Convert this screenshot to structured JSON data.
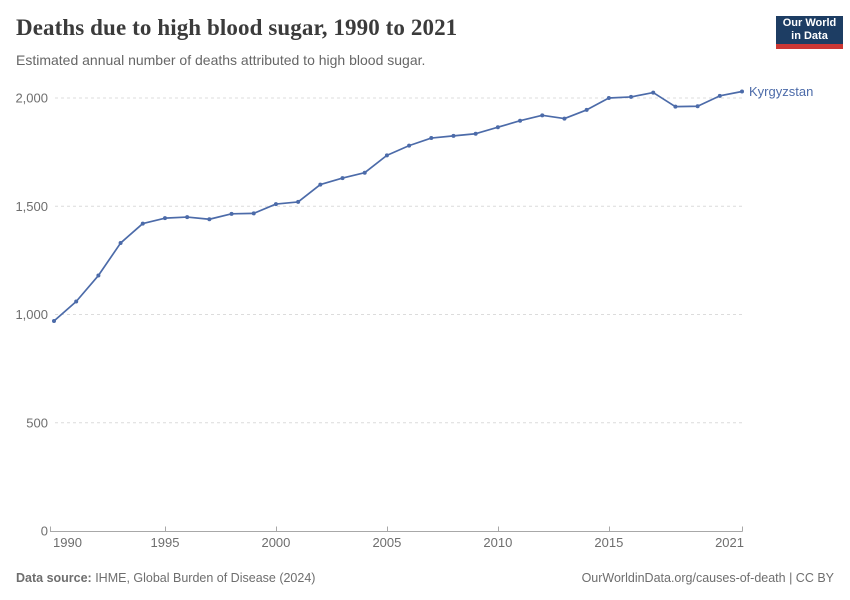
{
  "header": {
    "title": "Deaths due to high blood sugar, 1990 to 2021",
    "subtitle": "Estimated annual number of deaths attributed to high blood sugar.",
    "logo_line1": "Our World",
    "logo_line2": "in Data"
  },
  "footer": {
    "data_source_label": "Data source:",
    "data_source_value": " IHME, Global Burden of Disease (2024)",
    "link": "OurWorldinData.org/causes-of-death | CC BY"
  },
  "colors": {
    "line": "#4c6ba9",
    "grid": "#dcdcdc",
    "axis": "#a8a8a8",
    "tick_text": "#6e6e6e",
    "title_text": "#3b3b3b",
    "logo_bg": "#1d3d63",
    "logo_red": "#cb3734"
  },
  "chart_data": {
    "type": "line",
    "title": "Deaths due to high blood sugar, 1990 to 2021",
    "subtitle": "Estimated annual number of deaths attributed to high blood sugar.",
    "xlabel": "",
    "ylabel": "",
    "xlim": [
      1990,
      2021
    ],
    "ylim": [
      0,
      2000
    ],
    "grid": "horizontal-dashed",
    "legend": "end-of-line-label",
    "x_ticks": [
      1990,
      1995,
      2000,
      2005,
      2010,
      2015,
      2021
    ],
    "x_tick_labels": [
      "1990",
      "1995",
      "2000",
      "2005",
      "2010",
      "2015",
      "2021"
    ],
    "y_ticks": [
      0,
      500,
      1000,
      1500,
      2000
    ],
    "y_tick_labels": [
      "0",
      "500",
      "1,000",
      "1,500",
      "2,000"
    ],
    "x": [
      1990,
      1991,
      1992,
      1993,
      1994,
      1995,
      1996,
      1997,
      1998,
      1999,
      2000,
      2001,
      2002,
      2003,
      2004,
      2005,
      2006,
      2007,
      2008,
      2009,
      2010,
      2011,
      2012,
      2013,
      2014,
      2015,
      2016,
      2017,
      2018,
      2019,
      2020,
      2021
    ],
    "series": [
      {
        "name": "Kyrgyzstan",
        "color": "#4c6ba9",
        "values": [
          970,
          1060,
          1180,
          1330,
          1420,
          1445,
          1450,
          1440,
          1465,
          1467,
          1510,
          1520,
          1600,
          1630,
          1655,
          1735,
          1780,
          1815,
          1825,
          1835,
          1865,
          1895,
          1920,
          1905,
          1945,
          2000,
          2005,
          2025,
          1960,
          1962,
          2010,
          2030
        ]
      }
    ]
  }
}
